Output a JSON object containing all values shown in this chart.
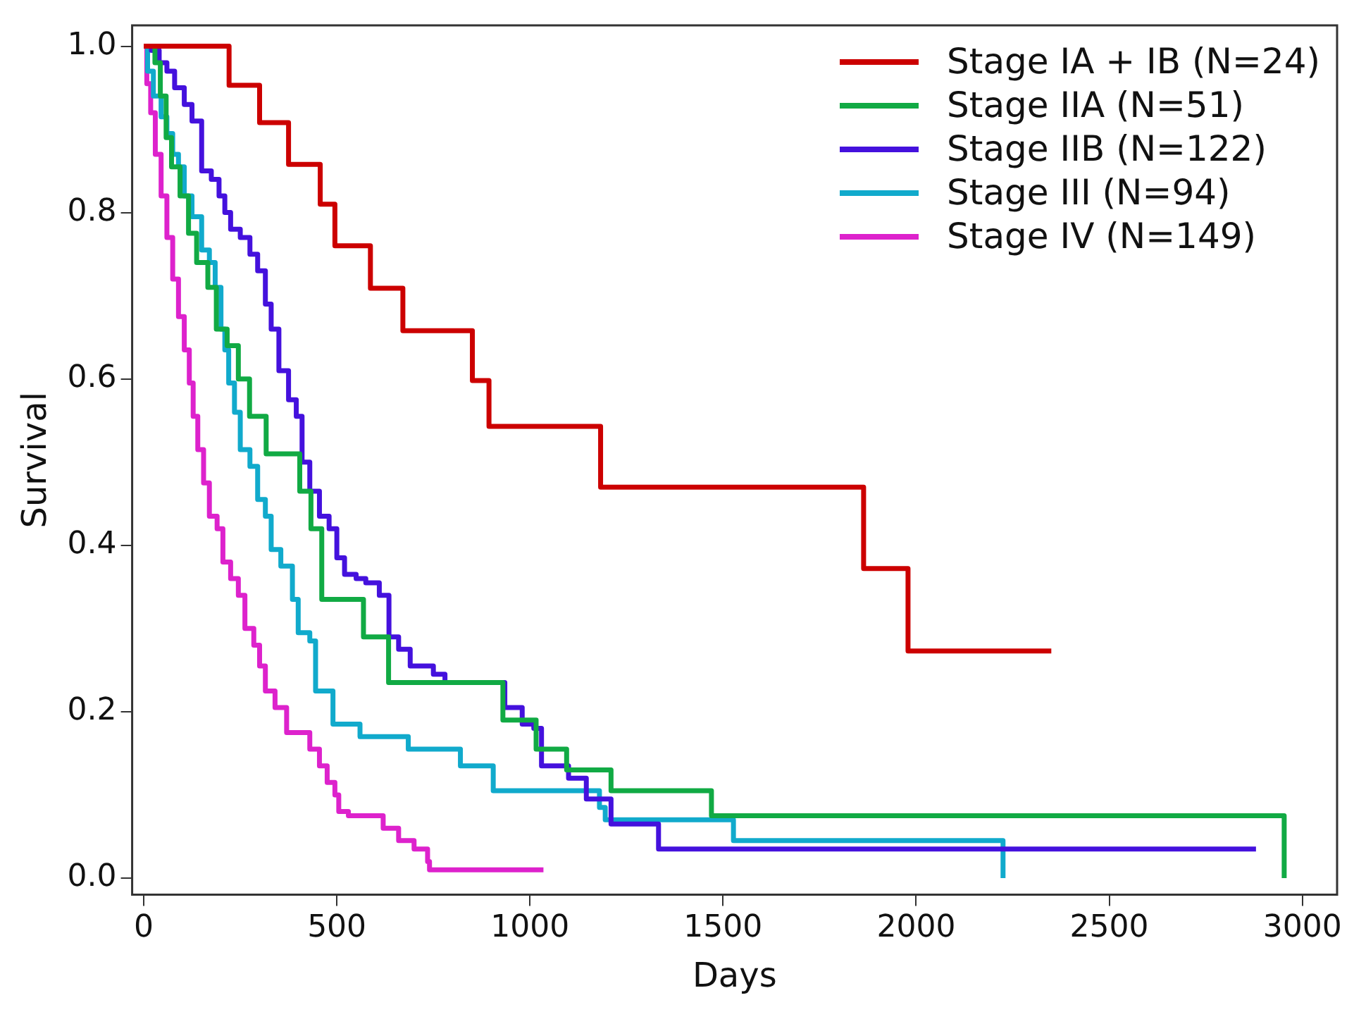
{
  "chart_data": {
    "type": "step",
    "xlabel": "Days",
    "ylabel": "Survival",
    "xlim": [
      -30,
      3090
    ],
    "ylim": [
      -0.02,
      1.025
    ],
    "xticks": [
      0,
      500,
      1000,
      1500,
      2000,
      2500,
      3000
    ],
    "yticks": [
      {
        "value": 0,
        "label": "0.0"
      },
      {
        "value": 0.2,
        "label": "0.2"
      },
      {
        "value": 0.4,
        "label": "0.4"
      },
      {
        "value": 0.6,
        "label": "0.6"
      },
      {
        "value": 0.8,
        "label": "0.8"
      },
      {
        "value": 1,
        "label": "1.0"
      }
    ],
    "grid": false,
    "legend": "top right",
    "series": [
      {
        "name": "Stage IA + IB (N=24)",
        "color": "#cc0000",
        "x": [
          0,
          221,
          300,
          375,
          457,
          495,
          587,
          671,
          851,
          894,
          1183,
          1864,
          1979,
          2350
        ],
        "values": [
          1,
          0.953,
          0.908,
          0.858,
          0.81,
          0.76,
          0.709,
          0.658,
          0.598,
          0.543,
          0.47,
          0.372,
          0.273,
          0.273
        ]
      },
      {
        "name": "Stage IIA (N=51)",
        "color": "#11aa44",
        "x": [
          0,
          29,
          43,
          58,
          72,
          94,
          116,
          137,
          166,
          188,
          216,
          245,
          274,
          317,
          404,
          433,
          461,
          569,
          634,
          930,
          1016,
          1095,
          1210,
          1470,
          2953
        ],
        "values": [
          1,
          0.98,
          0.94,
          0.89,
          0.855,
          0.82,
          0.775,
          0.74,
          0.71,
          0.66,
          0.64,
          0.6,
          0.555,
          0.51,
          0.465,
          0.42,
          0.335,
          0.29,
          0.235,
          0.19,
          0.155,
          0.13,
          0.105,
          0.075,
          0
        ]
      },
      {
        "name": "Stage IIB (N=122)",
        "color": "#4411dd",
        "x": [
          0,
          20,
          40,
          60,
          80,
          105,
          125,
          150,
          175,
          195,
          210,
          225,
          250,
          275,
          295,
          315,
          330,
          350,
          375,
          395,
          410,
          430,
          455,
          480,
          500,
          520,
          550,
          575,
          610,
          635,
          660,
          690,
          750,
          780,
          935,
          980,
          1010,
          1030,
          1100,
          1146,
          1210,
          1333,
          2880
        ],
        "values": [
          1,
          0.995,
          0.98,
          0.97,
          0.95,
          0.93,
          0.91,
          0.85,
          0.84,
          0.82,
          0.8,
          0.78,
          0.77,
          0.75,
          0.73,
          0.69,
          0.66,
          0.61,
          0.575,
          0.555,
          0.5,
          0.465,
          0.435,
          0.42,
          0.385,
          0.365,
          0.36,
          0.355,
          0.34,
          0.29,
          0.275,
          0.255,
          0.245,
          0.235,
          0.205,
          0.185,
          0.18,
          0.135,
          0.12,
          0.095,
          0.065,
          0.035,
          0.035
        ]
      },
      {
        "name": "Stage III (N=94)",
        "color": "#11aacc",
        "x": [
          0,
          10,
          25,
          45,
          60,
          75,
          90,
          105,
          125,
          150,
          170,
          185,
          200,
          210,
          220,
          235,
          250,
          275,
          295,
          315,
          330,
          355,
          385,
          400,
          430,
          445,
          490,
          560,
          685,
          820,
          905,
          1180,
          1195,
          1527,
          2225
        ],
        "values": [
          1,
          0.97,
          0.94,
          0.915,
          0.895,
          0.87,
          0.855,
          0.82,
          0.795,
          0.755,
          0.74,
          0.71,
          0.66,
          0.635,
          0.595,
          0.56,
          0.515,
          0.495,
          0.455,
          0.435,
          0.395,
          0.375,
          0.335,
          0.295,
          0.285,
          0.225,
          0.185,
          0.17,
          0.155,
          0.135,
          0.105,
          0.085,
          0.07,
          0.045,
          0
        ]
      },
      {
        "name": "Stage IV (N=149)",
        "color": "#dd22cc",
        "x": [
          0,
          8,
          18,
          30,
          45,
          60,
          75,
          90,
          105,
          118,
          128,
          140,
          155,
          170,
          190,
          205,
          225,
          245,
          262,
          285,
          300,
          315,
          340,
          370,
          430,
          455,
          475,
          495,
          505,
          530,
          620,
          660,
          700,
          735,
          740,
          1035
        ],
        "values": [
          1,
          0.955,
          0.92,
          0.87,
          0.82,
          0.77,
          0.72,
          0.675,
          0.635,
          0.595,
          0.555,
          0.515,
          0.475,
          0.435,
          0.42,
          0.38,
          0.36,
          0.34,
          0.3,
          0.28,
          0.255,
          0.225,
          0.205,
          0.175,
          0.155,
          0.135,
          0.115,
          0.1,
          0.08,
          0.075,
          0.06,
          0.045,
          0.035,
          0.02,
          0.01,
          0.01
        ]
      }
    ]
  }
}
